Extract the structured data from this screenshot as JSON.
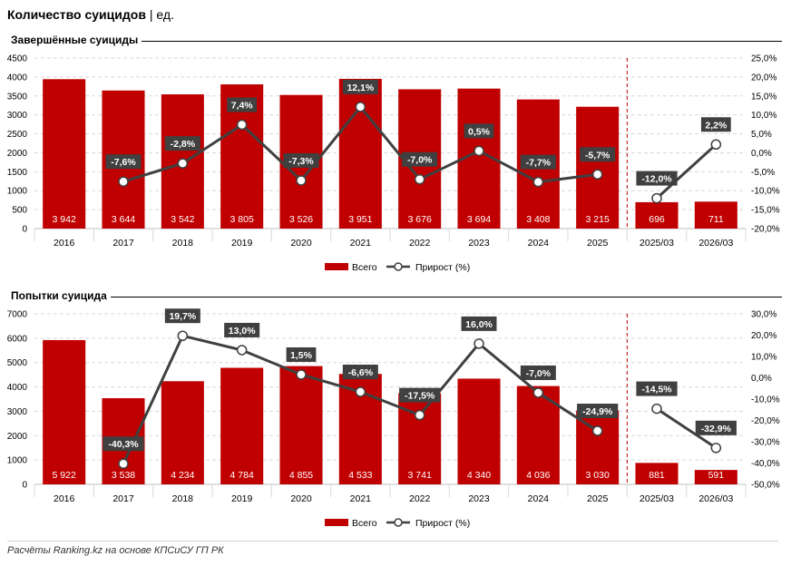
{
  "page": {
    "title": "Количество суицидов",
    "separator": "|",
    "unit": "ед.",
    "footer": "Расчёты Ranking.kz на основе КПСиСУ ГП РК"
  },
  "colors": {
    "bar": "#c00000",
    "line": "#404040",
    "marker_fill": "#ffffff",
    "label_bg": "#404040",
    "divider": "#c00000"
  },
  "chart_data": [
    {
      "type": "bar",
      "title": "Завершённые суициды",
      "categories": [
        "2016",
        "2017",
        "2018",
        "2019",
        "2020",
        "2021",
        "2022",
        "2023",
        "2024",
        "2025",
        "2025/03",
        "2026/03"
      ],
      "series": [
        {
          "name": "Всего",
          "type": "bar",
          "axis": "left",
          "values": [
            3942,
            3644,
            3542,
            3805,
            3526,
            3951,
            3676,
            3694,
            3408,
            3215,
            696,
            711
          ],
          "labels": [
            "3 942",
            "3 644",
            "3 542",
            "3 805",
            "3 526",
            "3 951",
            "3 676",
            "3 694",
            "3 408",
            "3 215",
            "696",
            "711"
          ]
        },
        {
          "name": "Прирост (%)",
          "type": "line",
          "axis": "right",
          "values": [
            null,
            -7.6,
            -2.8,
            7.4,
            -7.3,
            12.1,
            -7.0,
            0.5,
            -7.7,
            -5.7,
            -12.0,
            2.2
          ],
          "labels": [
            "",
            "-7,6%",
            "-2,8%",
            "7,4%",
            "-7,3%",
            "12,1%",
            "-7,0%",
            "0,5%",
            "-7,7%",
            "-5,7%",
            "-12,0%",
            "2,2%"
          ]
        }
      ],
      "ylim": [
        0,
        4500
      ],
      "yticks": [
        "0",
        "500",
        "1000",
        "1500",
        "2000",
        "2500",
        "3000",
        "3500",
        "4000",
        "4500"
      ],
      "y2lim": [
        -20,
        25
      ],
      "y2ticks": [
        "-20,0%",
        "-15,0%",
        "-10,0%",
        "-5,0%",
        "0,0%",
        "5,0%",
        "10,0%",
        "15,0%",
        "20,0%",
        "25,0%"
      ],
      "grid": true,
      "legend": "bottom",
      "line_segments": [
        [
          1,
          9
        ],
        [
          10,
          11
        ]
      ],
      "divider_after": "2025"
    },
    {
      "type": "bar",
      "title": "Попытки суицида",
      "categories": [
        "2016",
        "2017",
        "2018",
        "2019",
        "2020",
        "2021",
        "2022",
        "2023",
        "2024",
        "2025",
        "2025/03",
        "2026/03"
      ],
      "series": [
        {
          "name": "Всего",
          "type": "bar",
          "axis": "left",
          "values": [
            5922,
            3538,
            4234,
            4784,
            4855,
            4533,
            3741,
            4340,
            4036,
            3030,
            881,
            591
          ],
          "labels": [
            "5 922",
            "3 538",
            "4 234",
            "4 784",
            "4 855",
            "4 533",
            "3 741",
            "4 340",
            "4 036",
            "3 030",
            "881",
            "591"
          ]
        },
        {
          "name": "Прирост (%)",
          "type": "line",
          "axis": "right",
          "values": [
            null,
            -40.3,
            19.7,
            13.0,
            1.5,
            -6.6,
            -17.5,
            16.0,
            -7.0,
            -24.9,
            -14.5,
            -32.9
          ],
          "labels": [
            "",
            "-40,3%",
            "19,7%",
            "13,0%",
            "1,5%",
            "-6,6%",
            "-17,5%",
            "16,0%",
            "-7,0%",
            "-24,9%",
            "-14,5%",
            "-32,9%"
          ]
        }
      ],
      "ylim": [
        0,
        7000
      ],
      "yticks": [
        "0",
        "1000",
        "2000",
        "3000",
        "4000",
        "5000",
        "6000",
        "7000"
      ],
      "y2lim": [
        -50,
        30
      ],
      "y2ticks": [
        "-50,0%",
        "-40,0%",
        "-30,0%",
        "-20,0%",
        "-10,0%",
        "0,0%",
        "10,0%",
        "20,0%",
        "30,0%"
      ],
      "grid": true,
      "legend": "bottom",
      "line_segments": [
        [
          1,
          9
        ],
        [
          10,
          11
        ]
      ],
      "divider_after": "2025"
    }
  ]
}
